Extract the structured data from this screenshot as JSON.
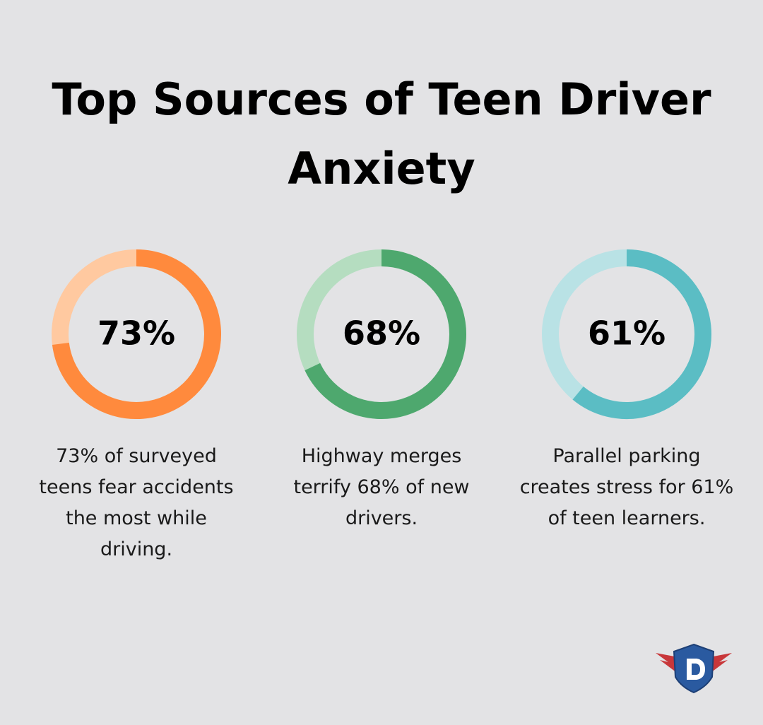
{
  "title": "Top Sources of Teen Driver Anxiety",
  "chart_data": [
    {
      "type": "donut",
      "values": [
        73
      ],
      "value_labels": [
        "73%"
      ],
      "color": "#ff8a3d",
      "track_color": "#ffc9a0",
      "caption": "73% of surveyed teens fear accidents the most while driving."
    },
    {
      "type": "donut",
      "values": [
        68
      ],
      "value_labels": [
        "68%"
      ],
      "color": "#4ea86e",
      "track_color": "#b5ddc0",
      "caption": "Highway merges terrify 68% of new drivers."
    },
    {
      "type": "donut",
      "values": [
        61
      ],
      "value_labels": [
        "61%"
      ],
      "color": "#5bbdc4",
      "track_color": "#b9e2e5",
      "caption": "Parallel parking creates stress for 61% of teen learners."
    }
  ]
}
